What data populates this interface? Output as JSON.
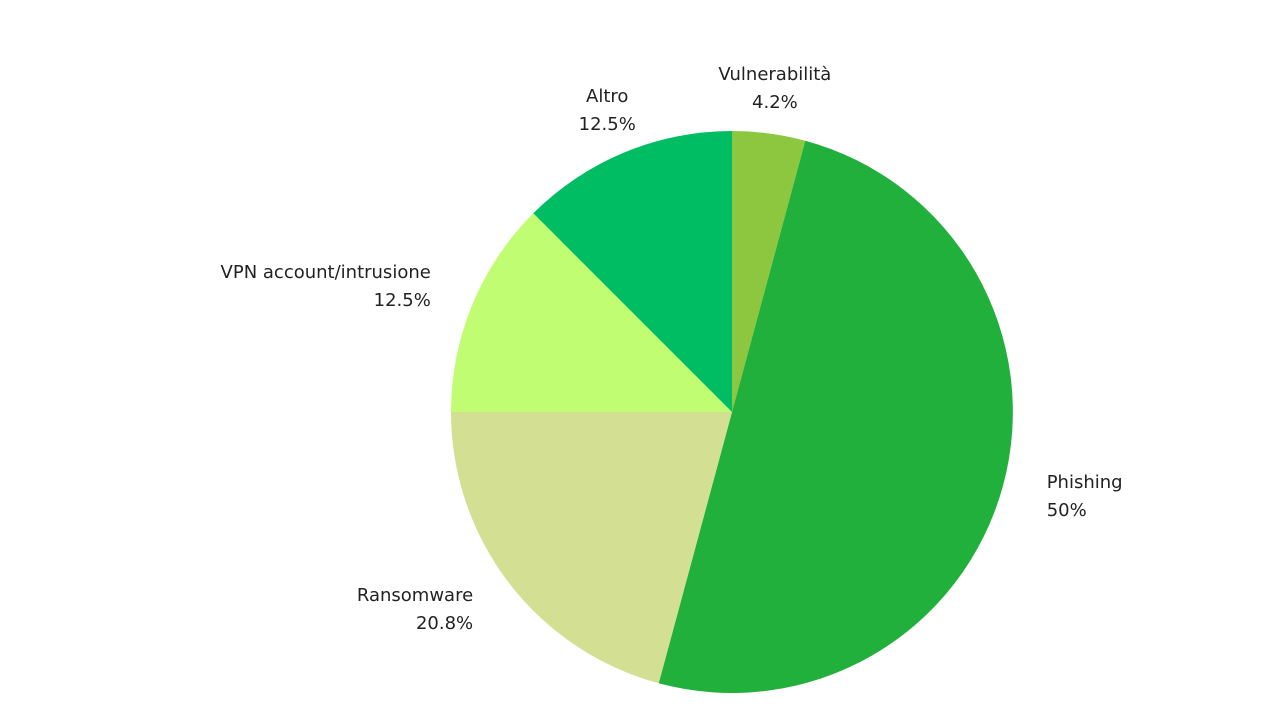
{
  "chart_data": {
    "type": "pie",
    "categories": [
      "Vulnerabilità",
      "Phishing",
      "Ransomware",
      "VPN account/intrusione",
      "Altro"
    ],
    "values": [
      4.2,
      50,
      20.8,
      12.5,
      12.5
    ],
    "value_labels": [
      "4.2%",
      "50%",
      "20.8%",
      "12.5%",
      "12.5%"
    ],
    "colors": [
      "#8dc63f",
      "#22b03c",
      "#d3df93",
      "#c1fd72",
      "#00bd63"
    ]
  }
}
